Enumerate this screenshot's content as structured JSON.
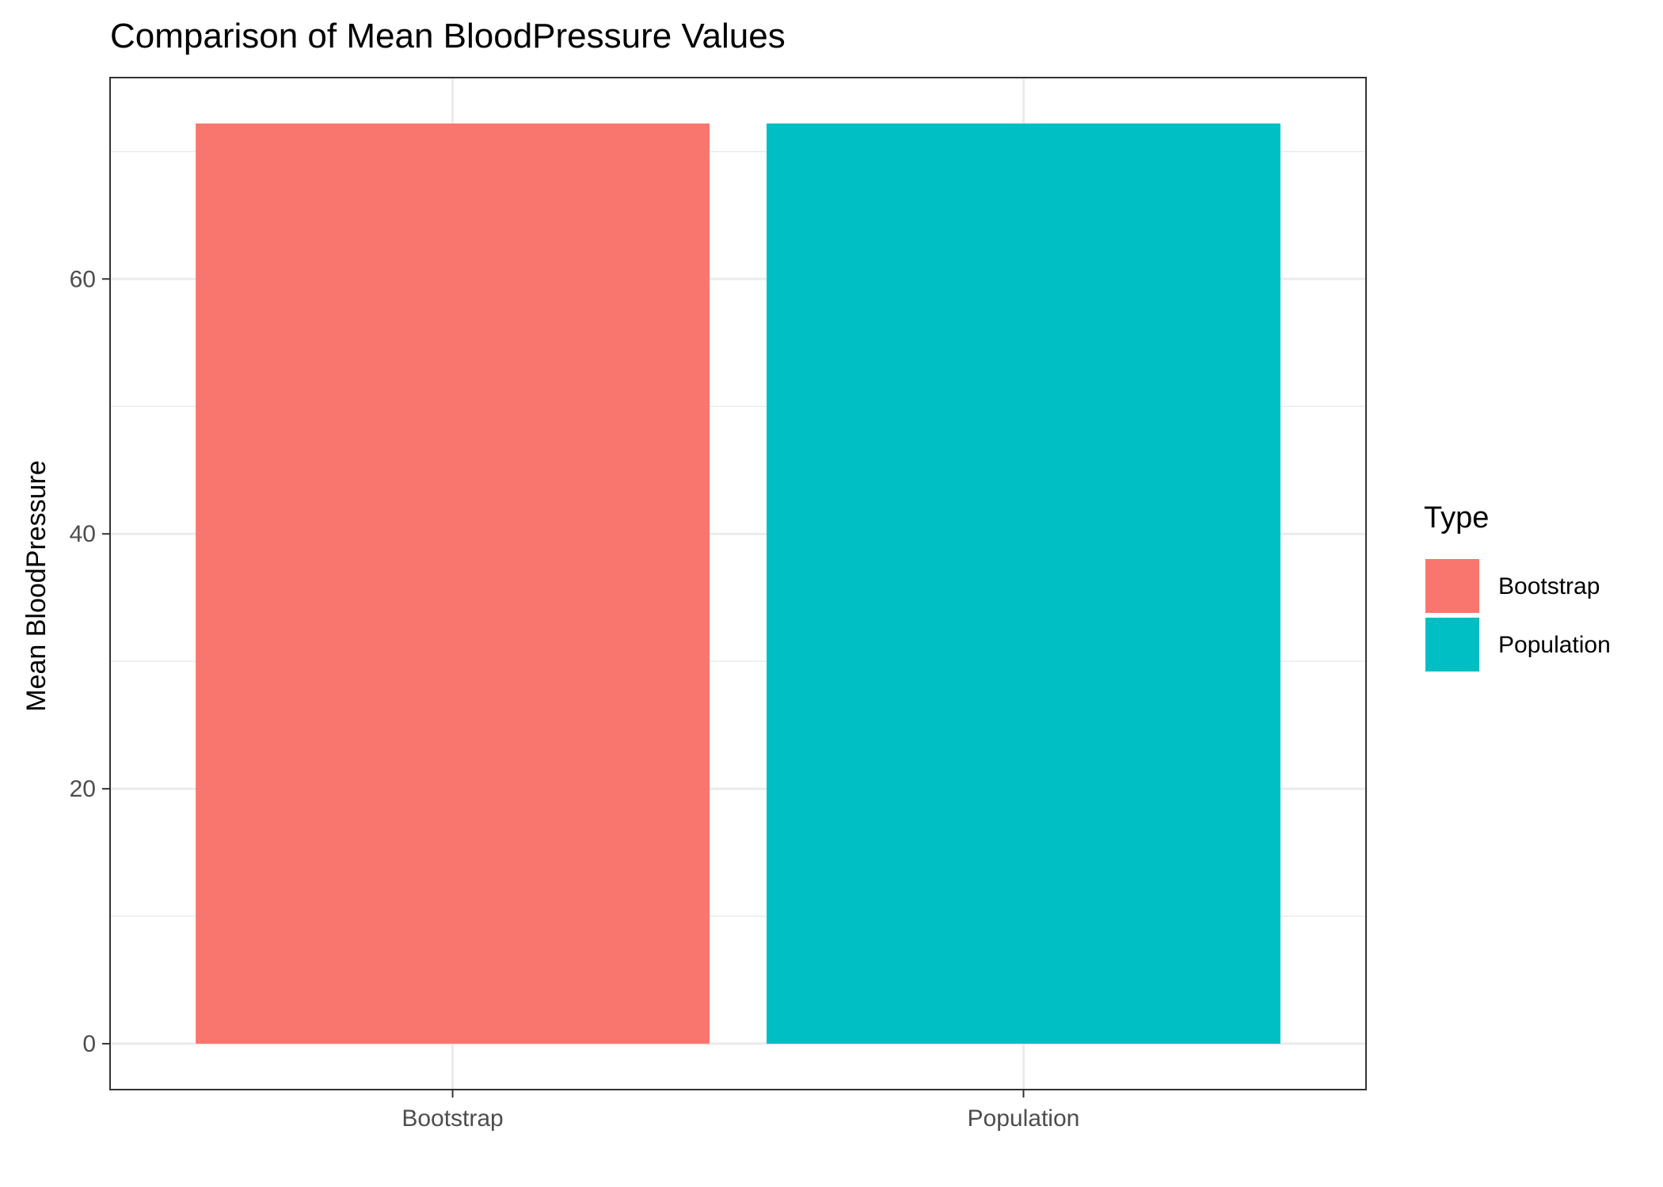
{
  "chart_data": {
    "type": "bar",
    "title": "Comparison of Mean BloodPressure Values",
    "xlabel": "",
    "ylabel": "Mean BloodPressure",
    "categories": [
      "Bootstrap",
      "Population"
    ],
    "values": [
      72.2,
      72.2
    ],
    "colors": [
      "#F8766D",
      "#00BFC4"
    ],
    "ylim": [
      -3.6,
      75.8
    ],
    "yticks": [
      0,
      20,
      40,
      60
    ],
    "ytick_labels": [
      "0",
      "20",
      "40",
      "60"
    ],
    "grid": true,
    "legend": {
      "title": "Type",
      "position": "right",
      "entries": [
        "Bootstrap",
        "Population"
      ]
    }
  }
}
